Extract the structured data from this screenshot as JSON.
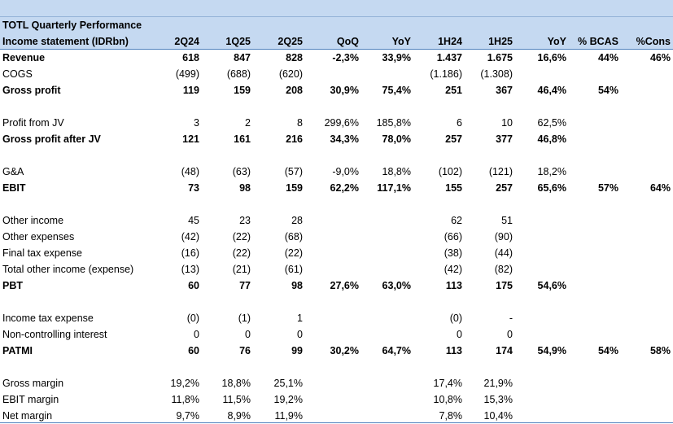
{
  "title": "TOTL Quarterly Performance",
  "header": {
    "label": "Income statement (IDRbn)",
    "columns": [
      "2Q24",
      "1Q25",
      "2Q25",
      "QoQ",
      "YoY",
      "1H24",
      "1H25",
      "YoY",
      "% BCAS",
      "%Cons"
    ]
  },
  "rows": [
    {
      "label": "Revenue",
      "bold": true,
      "values": [
        "618",
        "847",
        "828",
        "-2,3%",
        "33,9%",
        "1.437",
        "1.675",
        "16,6%",
        "44%",
        "46%"
      ]
    },
    {
      "label": "COGS",
      "bold": false,
      "values": [
        "(499)",
        "(688)",
        "(620)",
        "",
        "",
        "(1.186)",
        "(1.308)",
        "",
        "",
        ""
      ]
    },
    {
      "label": "Gross profit",
      "bold": true,
      "values": [
        "119",
        "159",
        "208",
        "30,9%",
        "75,4%",
        "251",
        "367",
        "46,4%",
        "54%",
        ""
      ]
    },
    {
      "label": "Profit from JV",
      "bold": false,
      "values": [
        "3",
        "2",
        "8",
        "299,6%",
        "185,8%",
        "6",
        "10",
        "62,5%",
        "",
        ""
      ]
    },
    {
      "label": "Gross profit after JV",
      "bold": true,
      "values": [
        "121",
        "161",
        "216",
        "34,3%",
        "78,0%",
        "257",
        "377",
        "46,8%",
        "",
        ""
      ]
    },
    {
      "label": "G&A",
      "bold": false,
      "values": [
        "(48)",
        "(63)",
        "(57)",
        "-9,0%",
        "18,8%",
        "(102)",
        "(121)",
        "18,2%",
        "",
        ""
      ]
    },
    {
      "label": "EBIT",
      "bold": true,
      "values": [
        "73",
        "98",
        "159",
        "62,2%",
        "117,1%",
        "155",
        "257",
        "65,6%",
        "57%",
        "64%"
      ]
    },
    {
      "label": "Other income",
      "bold": false,
      "values": [
        "45",
        "23",
        "28",
        "",
        "",
        "62",
        "51",
        "",
        "",
        ""
      ]
    },
    {
      "label": "Other expenses",
      "bold": false,
      "values": [
        "(42)",
        "(22)",
        "(68)",
        "",
        "",
        "(66)",
        "(90)",
        "",
        "",
        ""
      ]
    },
    {
      "label": "Final tax expense",
      "bold": false,
      "values": [
        "(16)",
        "(22)",
        "(22)",
        "",
        "",
        "(38)",
        "(44)",
        "",
        "",
        ""
      ]
    },
    {
      "label": "Total other income (expense)",
      "bold": false,
      "values": [
        "(13)",
        "(21)",
        "(61)",
        "",
        "",
        "(42)",
        "(82)",
        "",
        "",
        ""
      ]
    },
    {
      "label": "PBT",
      "bold": true,
      "values": [
        "60",
        "77",
        "98",
        "27,6%",
        "63,0%",
        "113",
        "175",
        "54,6%",
        "",
        ""
      ]
    },
    {
      "label": "Income tax expense",
      "bold": false,
      "values": [
        "(0)",
        "(1)",
        "1",
        "",
        "",
        "(0)",
        "-",
        "",
        "",
        ""
      ]
    },
    {
      "label": "Non-controlling interest",
      "bold": false,
      "values": [
        "0",
        "0",
        "0",
        "",
        "",
        "0",
        "0",
        "",
        "",
        ""
      ]
    },
    {
      "label": "PATMI",
      "bold": true,
      "values": [
        "60",
        "76",
        "99",
        "30,2%",
        "64,7%",
        "113",
        "174",
        "54,9%",
        "54%",
        "58%"
      ]
    },
    {
      "label": "Gross margin",
      "bold": false,
      "values": [
        "19,2%",
        "18,8%",
        "25,1%",
        "",
        "",
        "17,4%",
        "21,9%",
        "",
        "",
        ""
      ]
    },
    {
      "label": "EBIT margin",
      "bold": false,
      "values": [
        "11,8%",
        "11,5%",
        "19,2%",
        "",
        "",
        "10,8%",
        "15,3%",
        "",
        "",
        ""
      ]
    },
    {
      "label": "Net margin",
      "bold": false,
      "values": [
        "9,7%",
        "8,9%",
        "11,9%",
        "",
        "",
        "7,8%",
        "10,4%",
        "",
        "",
        ""
      ]
    }
  ]
}
